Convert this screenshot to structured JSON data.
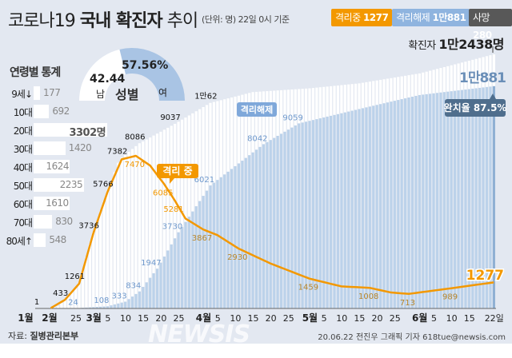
{
  "header": {
    "title_light": "코로나19",
    "title_bold": "국내 확진자",
    "title_end": "추이",
    "unit": "(단위: 명) 22일 0시 기준"
  },
  "legend": [
    {
      "label": "격리중",
      "value": "1277",
      "color": "#f39800"
    },
    {
      "label": "격리해제",
      "value": "1만881",
      "color": "#8fb4df"
    },
    {
      "label": "사망",
      "value": "280",
      "color": "#585858"
    }
  ],
  "confirmed_total": {
    "label": "확진자",
    "value": "1만2438명"
  },
  "age": {
    "title": "연령별 통계",
    "unit": "명",
    "items": [
      {
        "label": "9세↓",
        "value": 177
      },
      {
        "label": "10대",
        "value": 692
      },
      {
        "label": "20대",
        "value": 3302
      },
      {
        "label": "30대",
        "value": 1420
      },
      {
        "label": "40대",
        "value": 1624
      },
      {
        "label": "50대",
        "value": 2235
      },
      {
        "label": "60대",
        "value": 1610
      },
      {
        "label": "70대",
        "value": 830
      },
      {
        "label": "80세↑",
        "value": 548
      }
    ]
  },
  "gender": {
    "title": "성별",
    "male_label": "남",
    "male_pct": "42.44",
    "female_label": "여",
    "female_pct": "57.56%"
  },
  "chart_data": {
    "type": "bar+line",
    "x_ticks": [
      "1월",
      "2월",
      "25",
      "3월",
      "5",
      "10",
      "15",
      "20",
      "25",
      "4월",
      "5",
      "10",
      "15",
      "20",
      "25",
      "5월",
      "5",
      "10",
      "15",
      "20",
      "25",
      "6월",
      "5",
      "10",
      "15",
      "22일"
    ],
    "series": [
      {
        "name": "확진자",
        "kind": "bar",
        "color": "#ffffff",
        "points": [
          [
            "02-18",
            31
          ],
          [
            "02-20",
            104
          ],
          [
            "02-22",
            433
          ],
          [
            "02-26",
            1261
          ],
          [
            "02-29",
            3150
          ],
          [
            "03-01",
            3736
          ],
          [
            "03-05",
            5766
          ],
          [
            "03-08",
            7134
          ],
          [
            "03-09",
            7382
          ],
          [
            "03-14",
            8086
          ],
          [
            "03-20",
            8652
          ],
          [
            "03-24",
            9037
          ],
          [
            "04-03",
            10062
          ],
          [
            "04-15",
            10591
          ],
          [
            "05-01",
            10774
          ],
          [
            "05-15",
            11018
          ],
          [
            "06-01",
            11503
          ],
          [
            "06-10",
            11902
          ],
          [
            "06-22",
            12438
          ]
        ]
      },
      {
        "name": "격리해제",
        "kind": "bar",
        "color": "#bcd2ea",
        "points": [
          [
            "02-18",
            12
          ],
          [
            "02-26",
            24
          ],
          [
            "03-05",
            108
          ],
          [
            "03-10",
            333
          ],
          [
            "03-14",
            834
          ],
          [
            "03-19",
            1947
          ],
          [
            "03-25",
            3730
          ],
          [
            "04-03",
            6021
          ],
          [
            "04-18",
            8042
          ],
          [
            "04-28",
            9059
          ],
          [
            "05-15",
            9762
          ],
          [
            "06-01",
            10446
          ],
          [
            "06-22",
            10881
          ]
        ]
      },
      {
        "name": "격리 중",
        "kind": "line",
        "color": "#f39800",
        "points": [
          [
            "02-18",
            19
          ],
          [
            "02-22",
            424
          ],
          [
            "02-26",
            1215
          ],
          [
            "03-01",
            3680
          ],
          [
            "03-05",
            5700
          ],
          [
            "03-09",
            7300
          ],
          [
            "03-13",
            7470
          ],
          [
            "03-17",
            7000
          ],
          [
            "03-21",
            6085
          ],
          [
            "03-24",
            5281
          ],
          [
            "03-27",
            4400
          ],
          [
            "04-01",
            3867
          ],
          [
            "04-05",
            3590
          ],
          [
            "04-11",
            2930
          ],
          [
            "04-20",
            2200
          ],
          [
            "05-01",
            1459
          ],
          [
            "05-10",
            1080
          ],
          [
            "05-18",
            1008
          ],
          [
            "05-24",
            780
          ],
          [
            "05-29",
            713
          ],
          [
            "06-10",
            989
          ],
          [
            "06-22",
            1277
          ]
        ]
      }
    ],
    "labels": {
      "confirmed": [
        [
          "01-20",
          "1"
        ],
        [
          "02-22",
          "433"
        ],
        [
          "02-26",
          "1261"
        ],
        [
          "03-01",
          "3736"
        ],
        [
          "03-05",
          "5766"
        ],
        [
          "03-09",
          "7382"
        ],
        [
          "03-14",
          "8086"
        ],
        [
          "03-24",
          "9037"
        ],
        [
          "04-03",
          "1만62"
        ]
      ],
      "released": [
        [
          "02-26",
          "24"
        ],
        [
          "03-05",
          "108"
        ],
        [
          "03-10",
          "333"
        ],
        [
          "03-14",
          "834"
        ],
        [
          "03-19",
          "1947"
        ],
        [
          "03-25",
          "3730"
        ],
        [
          "04-03",
          "6021"
        ],
        [
          "04-18",
          "8042"
        ],
        [
          "04-28",
          "9059"
        ]
      ],
      "isolated": [
        [
          "03-13",
          "7470"
        ],
        [
          "03-21",
          "6085"
        ],
        [
          "03-24",
          "5281"
        ],
        [
          "04-01",
          "3867"
        ],
        [
          "04-11",
          "2930"
        ],
        [
          "05-01",
          "1459"
        ],
        [
          "05-18",
          "1008"
        ],
        [
          "05-29",
          "713"
        ],
        [
          "06-10",
          "989"
        ]
      ]
    },
    "tags": {
      "isolated": "격리 중",
      "released": "격리해제",
      "released_total": "1만881",
      "recovery_rate": "완치율 87.5%",
      "isolated_total": "1277"
    },
    "ylim": [
      0,
      12438
    ]
  },
  "footer": {
    "source_label": "자료:",
    "source": "질병관리본부",
    "credit": "20.06.22 전진우 그래픽 기자 618tue@newsis.com",
    "watermark": "NEWSIS"
  }
}
